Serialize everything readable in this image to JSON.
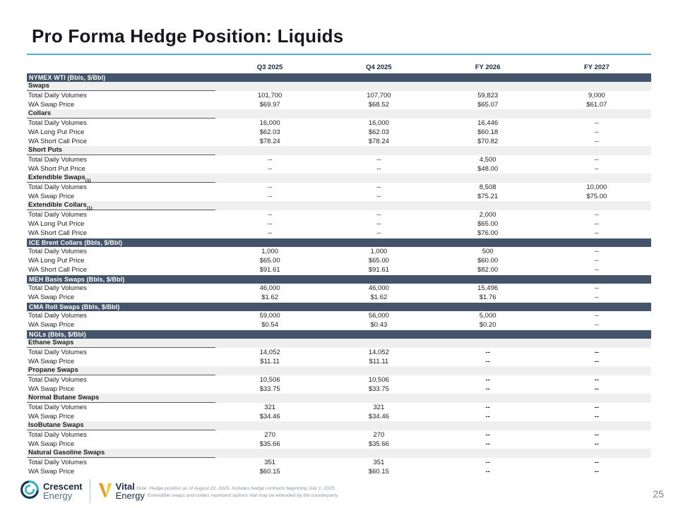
{
  "slide": {
    "title": "Pro Forma Hedge Position: Liquids",
    "page_number": "25"
  },
  "colors": {
    "section_bar": "#44546A",
    "title_rule": "#4FB0DD",
    "group_band": "#EFEFEF"
  },
  "table": {
    "columns": [
      "Q3 2025",
      "Q4 2025",
      "FY 2026",
      "FY 2027"
    ],
    "sections": [
      {
        "header": "NYMEX WTI (Bbls, $/Bbl)",
        "groups": [
          {
            "label": "Swaps",
            "rows": [
              {
                "label": "Total Daily Volumes",
                "values": [
                  "101,700",
                  "107,700",
                  "59,823",
                  "9,000"
                ]
              },
              {
                "label": "WA Swap Price",
                "values": [
                  "$69.97",
                  "$68.52",
                  "$65.07",
                  "$61.07"
                ]
              }
            ]
          },
          {
            "label": "Collars",
            "rows": [
              {
                "label": "Total Daily Volumes",
                "values": [
                  "16,000",
                  "16,000",
                  "16,446",
                  "--"
                ]
              },
              {
                "label": "WA Long Put Price",
                "values": [
                  "$62.03",
                  "$62.03",
                  "$60.18",
                  "--"
                ]
              },
              {
                "label": "WA Short Call Price",
                "values": [
                  "$78.24",
                  "$78.24",
                  "$70.82",
                  "--"
                ]
              }
            ]
          },
          {
            "label": "Short Puts",
            "rows": [
              {
                "label": "Total Daily Volumes",
                "values": [
                  "--",
                  "--",
                  "4,500",
                  "--"
                ]
              },
              {
                "label": "WA Short Put Price",
                "values": [
                  "--",
                  "--",
                  "$48.00",
                  "--"
                ]
              }
            ]
          },
          {
            "label": "Extendible Swaps",
            "sup": "(1)",
            "rows": [
              {
                "label": "Total Daily Volumes",
                "values": [
                  "--",
                  "--",
                  "8,508",
                  "10,000"
                ]
              },
              {
                "label": "WA Swap Price",
                "values": [
                  "--",
                  "--",
                  "$75.21",
                  "$75.00"
                ]
              }
            ]
          },
          {
            "label": "Extendible Collars",
            "sup": "(1)",
            "rows": [
              {
                "label": "Total Daily Volumes",
                "values": [
                  "--",
                  "--",
                  "2,000",
                  "--"
                ]
              },
              {
                "label": "WA Long Put Price",
                "values": [
                  "--",
                  "--",
                  "$65.00",
                  "--"
                ]
              },
              {
                "label": "WA Short Call Price",
                "values": [
                  "--",
                  "--",
                  "$76.00",
                  "--"
                ]
              }
            ]
          }
        ]
      },
      {
        "header": "ICE Brent Collars (Bbls, $/Bbl)",
        "groups": [
          {
            "label": null,
            "rows": [
              {
                "label": "Total Daily Volumes",
                "values": [
                  "1,000",
                  "1,000",
                  "500",
                  "--"
                ]
              },
              {
                "label": "WA Long Put Price",
                "values": [
                  "$65.00",
                  "$65.00",
                  "$60.00",
                  "--"
                ]
              },
              {
                "label": "WA Short Call Price",
                "values": [
                  "$91.61",
                  "$91.61",
                  "$82.00",
                  "--"
                ]
              }
            ]
          }
        ]
      },
      {
        "header": "MEH Basis Swaps (Bbls, $/Bbl)",
        "groups": [
          {
            "label": null,
            "rows": [
              {
                "label": "Total Daily Volumes",
                "values": [
                  "46,000",
                  "46,000",
                  "15,496",
                  "--"
                ]
              },
              {
                "label": "WA Swap Price",
                "values": [
                  "$1.62",
                  "$1.62",
                  "$1.76",
                  "--"
                ]
              }
            ]
          }
        ]
      },
      {
        "header": "CMA Roll Swaps (Bbls, $/Bbl)",
        "groups": [
          {
            "label": null,
            "rows": [
              {
                "label": "Total Daily Volumes",
                "values": [
                  "59,000",
                  "56,000",
                  "5,000",
                  "--"
                ]
              },
              {
                "label": "WA Swap Price",
                "values": [
                  "$0.54",
                  "$0.43",
                  "$0.20",
                  "--"
                ]
              }
            ]
          }
        ]
      },
      {
        "header": "NGLs (Bbls, $/Bbl)",
        "bold_dashes": true,
        "groups": [
          {
            "label": "Ethane Swaps",
            "rows": [
              {
                "label": "Total Daily Volumes",
                "values": [
                  "14,052",
                  "14,052",
                  "--",
                  "--"
                ]
              },
              {
                "label": "WA Swap Price",
                "values": [
                  "$11.11",
                  "$11.11",
                  "--",
                  "--"
                ]
              }
            ]
          },
          {
            "label": "Propane Swaps",
            "rows": [
              {
                "label": "Total Daily Volumes",
                "values": [
                  "10,506",
                  "10,506",
                  "--",
                  "--"
                ]
              },
              {
                "label": "WA Swap Price",
                "values": [
                  "$33.75",
                  "$33.75",
                  "--",
                  "--"
                ]
              }
            ]
          },
          {
            "label": "Normal Butane Swaps",
            "rows": [
              {
                "label": "Total Daily Volumes",
                "values": [
                  "321",
                  "321",
                  "--",
                  "--"
                ]
              },
              {
                "label": "WA Swap Price",
                "values": [
                  "$34.46",
                  "$34.46",
                  "--",
                  "--"
                ]
              }
            ]
          },
          {
            "label": "IsoButane Swaps",
            "rows": [
              {
                "label": "Total Daily Volumes",
                "values": [
                  "270",
                  "270",
                  "--",
                  "--"
                ]
              },
              {
                "label": "WA Swap Price",
                "values": [
                  "$35.66",
                  "$35.66",
                  "--",
                  "--"
                ]
              }
            ]
          },
          {
            "label": "Natural Gasoline Swaps",
            "rows": [
              {
                "label": "Total Daily Volumes",
                "values": [
                  "351",
                  "351",
                  "--",
                  "--"
                ]
              },
              {
                "label": "WA Swap Price",
                "values": [
                  "$60.15",
                  "$60.15",
                  "--",
                  "--"
                ]
              }
            ]
          }
        ]
      }
    ]
  },
  "footer": {
    "crescent_name": "Crescent",
    "crescent_sub": "Energy",
    "vital_name": "Vital",
    "vital_sub": "Energy",
    "note_line1": "Note: Hedge position as of August 22, 2025. Includes hedge contracts beginning July 1, 2025.",
    "footnote_marker": "(1)",
    "footnote_text": "Extendible swaps and collars represent options that may be extended by the counterparty."
  }
}
